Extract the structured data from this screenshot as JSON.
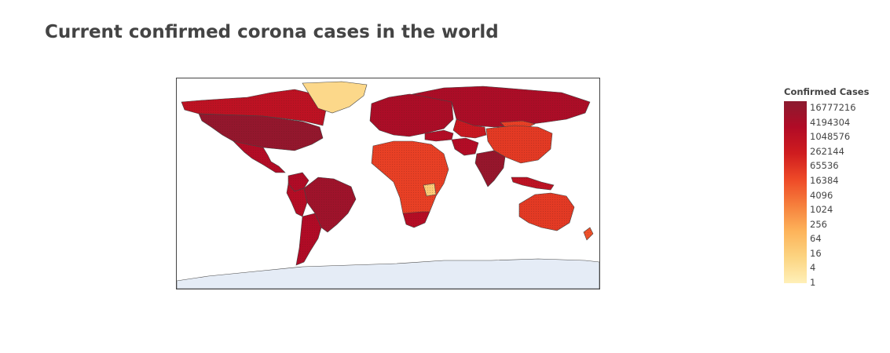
{
  "chart_data": {
    "type": "choropleth",
    "title": "Current confirmed corona cases in the world",
    "colorbar": {
      "title": "Confirmed Cases",
      "scale": "log",
      "ticks": [
        "16777216",
        "4194304",
        "1048576",
        "262144",
        "65536",
        "16384",
        "4096",
        "1024",
        "256",
        "64",
        "16",
        "4",
        "1"
      ],
      "colorscale": [
        "#fff0b8",
        "#fcd481",
        "#fdb35a",
        "#f67f3c",
        "#ee4927",
        "#cf1c1f",
        "#b10b26",
        "#8b1a2f"
      ]
    },
    "regions": [
      {
        "name": "United States",
        "level": 0.97
      },
      {
        "name": "Brazil",
        "level": 0.93
      },
      {
        "name": "India",
        "level": 0.96
      },
      {
        "name": "Russia",
        "level": 0.88
      },
      {
        "name": "Canada",
        "level": 0.8
      },
      {
        "name": "Mexico",
        "level": 0.85
      },
      {
        "name": "Argentina",
        "level": 0.86
      },
      {
        "name": "Colombia",
        "level": 0.86
      },
      {
        "name": "Peru",
        "level": 0.84
      },
      {
        "name": "Europe",
        "level": 0.88
      },
      {
        "name": "Turkey",
        "level": 0.85
      },
      {
        "name": "Iran",
        "level": 0.85
      },
      {
        "name": "South Africa",
        "level": 0.84
      },
      {
        "name": "China",
        "level": 0.62
      },
      {
        "name": "Australia",
        "level": 0.62
      },
      {
        "name": "Indonesia",
        "level": 0.8
      },
      {
        "name": "Kazakhstan",
        "level": 0.75
      },
      {
        "name": "Greenland",
        "level": 0.12
      },
      {
        "name": "Tanzania",
        "level": 0.18
      },
      {
        "name": "Mongolia",
        "level": 0.6
      },
      {
        "name": "New Zealand",
        "level": 0.55
      },
      {
        "name": "Antarctica",
        "level": null
      }
    ]
  }
}
